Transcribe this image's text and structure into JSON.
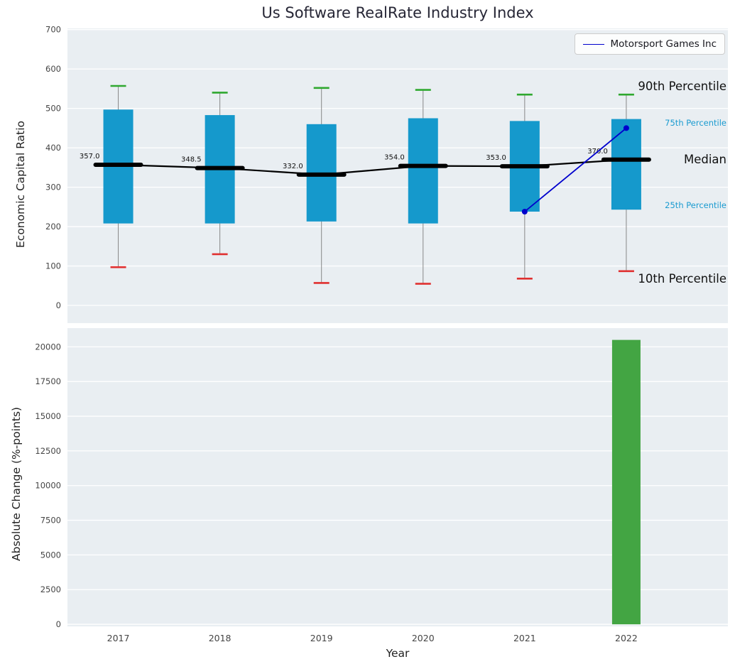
{
  "title": "Us Software RealRate Industry Index",
  "legend": {
    "label": "Motorsport Games Inc"
  },
  "annotations": {
    "p90": "90th Percentile",
    "p75": "75th Percentile",
    "median": "Median",
    "p25": "25th Percentile",
    "p10": "10th Percentile"
  },
  "colors": {
    "box": "#1599cc",
    "cap_top": "#2fa82f",
    "cap_bottom": "#e03030",
    "whisker": "#888888",
    "median": "#000000",
    "company_line": "#0000cd",
    "bar": "#43a543",
    "plot_bg": "#e9eef2",
    "grid": "#ffffff",
    "tick_label": "#444444",
    "annotation_primary": "#111111",
    "annotation_secondary": "#1a9bd0"
  },
  "chart_data": [
    {
      "type": "box",
      "title": "Us Software RealRate Industry Index",
      "ylabel": "Economic Capital Ratio",
      "ylim": [
        0,
        700
      ],
      "yticks": [
        0,
        100,
        200,
        300,
        400,
        500,
        600,
        700
      ],
      "grid": "horizontal",
      "legend_position": "upper right",
      "categories": [
        "2017",
        "2018",
        "2019",
        "2020",
        "2021",
        "2022"
      ],
      "years": [
        2017,
        2018,
        2019,
        2020,
        2021,
        2022
      ],
      "series": {
        "p10": [
          97,
          130,
          57,
          55,
          68,
          87
        ],
        "p25": [
          208,
          208,
          213,
          208,
          238,
          243
        ],
        "median": [
          357.0,
          348.5,
          332.0,
          354.0,
          353.0,
          370.0
        ],
        "p75": [
          497,
          483,
          460,
          475,
          468,
          473
        ],
        "p90": [
          557,
          540,
          552,
          547,
          535,
          535
        ]
      },
      "median_labels": [
        "357.0",
        "348.5",
        "332.0",
        "354.0",
        "353.0",
        "370.0"
      ],
      "company_series": {
        "name": "Motorsport Games Inc",
        "years": [
          2021,
          2022
        ],
        "values": [
          238,
          450
        ]
      }
    },
    {
      "type": "bar",
      "xlabel": "Year",
      "ylabel": "Absolute Change (%-points)",
      "ylim": [
        0,
        21000
      ],
      "yticks": [
        0,
        2500,
        5000,
        7500,
        10000,
        12500,
        15000,
        17500,
        20000
      ],
      "grid": "horizontal",
      "categories": [
        "2017",
        "2018",
        "2019",
        "2020",
        "2021",
        "2022"
      ],
      "values": [
        0,
        0,
        0,
        0,
        0,
        20500
      ]
    }
  ]
}
